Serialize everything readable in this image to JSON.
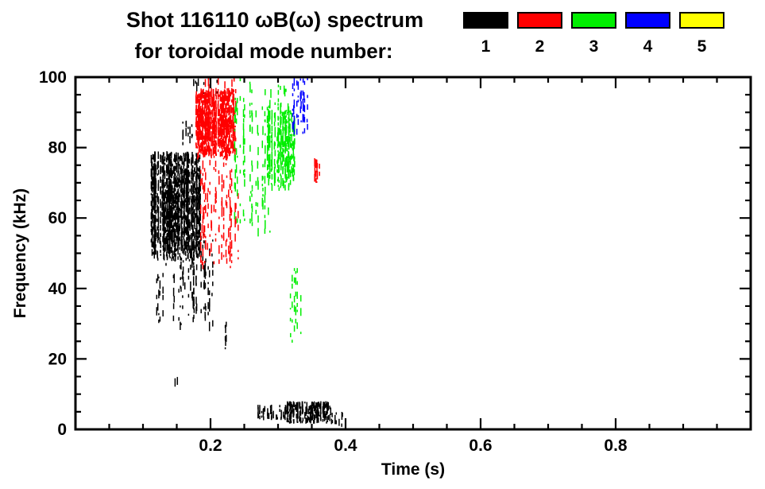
{
  "header": {
    "title_line1": "Shot 116110 ωB(ω) spectrum",
    "title_line2": "for toroidal mode number:"
  },
  "chart_data": {
    "type": "scatter",
    "title": "Shot 116110 ωB(ω) spectrum for toroidal mode number",
    "xlabel": "Time (s)",
    "ylabel": "Frequency (kHz)",
    "xlim": [
      0.0,
      1.0
    ],
    "ylim": [
      0,
      100
    ],
    "xticks": [
      0.2,
      0.4,
      0.6,
      0.8
    ],
    "x_minor_step": 0.05,
    "yticks": [
      0,
      20,
      40,
      60,
      80,
      100
    ],
    "y_minor_step": 5,
    "grid": false,
    "legend_position": "top-right",
    "legend": [
      {
        "label": "1",
        "color": "#000000"
      },
      {
        "label": "2",
        "color": "#ff0000"
      },
      {
        "label": "3",
        "color": "#00ee00"
      },
      {
        "label": "4",
        "color": "#0000ff"
      },
      {
        "label": "5",
        "color": "#ffff00"
      }
    ],
    "series": [
      {
        "mode": 1,
        "name": "n=1",
        "color": "#000000",
        "clusters": [
          {
            "t": [
              0.112,
              0.185
            ],
            "f": [
              48,
              79
            ],
            "n": 150,
            "p": 0.8
          },
          {
            "t": [
              0.118,
              0.205
            ],
            "f": [
              28,
              56
            ],
            "n": 42,
            "p": 0.3
          },
          {
            "t": [
              0.158,
              0.176
            ],
            "f": [
              81,
              88
            ],
            "n": 8,
            "p": 0.5
          },
          {
            "t": [
              0.16,
              0.21
            ],
            "f": [
              95,
              100
            ],
            "n": 10,
            "p": 0.45
          },
          {
            "t": [
              0.147,
              0.152
            ],
            "f": [
              12,
              15
            ],
            "n": 2,
            "p": 0.6
          },
          {
            "t": [
              0.219,
              0.224
            ],
            "f": [
              23,
              31
            ],
            "n": 3,
            "p": 0.6
          },
          {
            "t": [
              0.27,
              0.312
            ],
            "f": [
              3,
              7
            ],
            "n": 35,
            "p": 0.6
          },
          {
            "t": [
              0.312,
              0.378
            ],
            "f": [
              2,
              8
            ],
            "n": 110,
            "p": 0.75
          },
          {
            "t": [
              0.378,
              0.398
            ],
            "f": [
              1,
              5
            ],
            "n": 12,
            "p": 0.5
          }
        ]
      },
      {
        "mode": 2,
        "name": "n=2",
        "color": "#ff0000",
        "clusters": [
          {
            "t": [
              0.178,
              0.238
            ],
            "f": [
              77,
              97
            ],
            "n": 130,
            "p": 0.75
          },
          {
            "t": [
              0.183,
              0.243
            ],
            "f": [
              45,
              78
            ],
            "n": 35,
            "p": 0.28
          },
          {
            "t": [
              0.19,
              0.242
            ],
            "f": [
              97,
              100
            ],
            "n": 10,
            "p": 0.4
          },
          {
            "t": [
              0.352,
              0.362
            ],
            "f": [
              70,
              77
            ],
            "n": 9,
            "p": 0.7
          }
        ]
      },
      {
        "mode": 3,
        "name": "n=3",
        "color": "#00ee00",
        "clusters": [
          {
            "t": [
              0.283,
              0.325
            ],
            "f": [
              68,
              93
            ],
            "n": 65,
            "p": 0.55
          },
          {
            "t": [
              0.235,
              0.295
            ],
            "f": [
              55,
              100
            ],
            "n": 26,
            "p": 0.22
          },
          {
            "t": [
              0.318,
              0.334
            ],
            "f": [
              24,
              46
            ],
            "n": 7,
            "p": 0.5
          },
          {
            "t": [
              0.288,
              0.312
            ],
            "f": [
              93,
              100
            ],
            "n": 8,
            "p": 0.35
          }
        ]
      },
      {
        "mode": 4,
        "name": "n=4",
        "color": "#0000ff",
        "clusters": [
          {
            "t": [
              0.318,
              0.345
            ],
            "f": [
              84,
              100
            ],
            "n": 13,
            "p": 0.55
          }
        ]
      },
      {
        "mode": 5,
        "name": "n=5",
        "color": "#ffff00",
        "clusters": []
      }
    ]
  }
}
